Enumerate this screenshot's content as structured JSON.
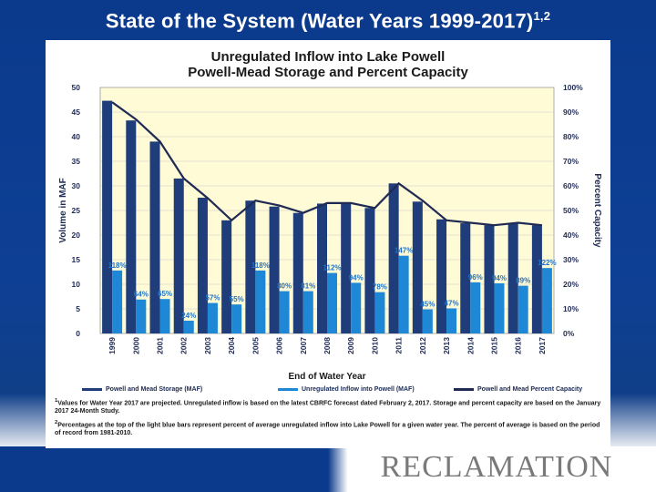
{
  "slide": {
    "title": "State of the System (Water Years 1999-2017)",
    "title_superscript": "1,2",
    "logo_text": "RECLAMATION"
  },
  "chart_data": {
    "type": "bar",
    "title_line1": "Unregulated Inflow into Lake Powell",
    "title_line2": "Powell-Mead Storage and Percent Capacity",
    "xlabel": "End of Water Year",
    "ylabel": "Volume in MAF",
    "y2label": "Percent Capacity",
    "ylim": [
      0,
      50
    ],
    "y_ticks": [
      "0",
      "5",
      "10",
      "15",
      "20",
      "25",
      "30",
      "35",
      "40",
      "45",
      "50"
    ],
    "y2_ticks": [
      "0%",
      "10%",
      "20%",
      "30%",
      "40%",
      "50%",
      "60%",
      "70%",
      "80%",
      "90%",
      "100%"
    ],
    "categories": [
      "1999",
      "2000",
      "2001",
      "2002",
      "2003",
      "2004",
      "2005",
      "2006",
      "2007",
      "2008",
      "2009",
      "2010",
      "2011",
      "2012",
      "2013",
      "2014",
      "2015",
      "2016",
      "2017"
    ],
    "series": [
      {
        "name": "Powell and Mead Storage (MAF)",
        "type": "bar",
        "color": "#1f3d7a",
        "values": [
          47.3,
          43.3,
          39.0,
          31.5,
          27.6,
          23.0,
          27.0,
          25.8,
          24.5,
          26.4,
          26.3,
          25.5,
          30.5,
          26.8,
          23.2,
          22.4,
          22.0,
          22.3,
          22.0
        ]
      },
      {
        "name": "Unregulated Inflow into Powell (MAF)",
        "type": "bar",
        "color": "#1e88d6",
        "values": [
          12.8,
          6.9,
          7.0,
          2.6,
          6.2,
          5.9,
          12.8,
          8.6,
          8.6,
          12.3,
          10.3,
          8.4,
          15.8,
          4.9,
          5.1,
          10.4,
          10.2,
          9.7,
          13.3
        ]
      },
      {
        "name": "Powell and Mead Percent Capacity",
        "type": "line",
        "color": "#1f2a55",
        "values": [
          94,
          87,
          78,
          63,
          55,
          46,
          54,
          52,
          49,
          53,
          53,
          51,
          61,
          54,
          46,
          45,
          44,
          45,
          44
        ]
      }
    ],
    "percent_labels": [
      "118%",
      "64%",
      "65%",
      "24%",
      "57%",
      "55%",
      "118%",
      "80%",
      "81%",
      "112%",
      "94%",
      "78%",
      "147%",
      "45%",
      "47%",
      "96%",
      "94%",
      "89%",
      "122%"
    ],
    "legend": [
      "Powell and Mead Storage (MAF)",
      "Unregulated Inflow into Powell (MAF)",
      "Powell and Mead Percent Capacity"
    ]
  },
  "footnotes": {
    "note1_marker": "1",
    "note1": "Values for Water Year 2017 are projected. Unregulated inflow is based on the latest CBRFC forecast dated February 2, 2017. Storage and percent capacity are based on the January 2017 24-Month Study.",
    "note2_marker": "2",
    "note2": "Percentages at the top of the light blue bars represent percent of average unregulated inflow into Lake Powell for a given water year. The percent of average is based on the period of record from 1981-2010."
  }
}
